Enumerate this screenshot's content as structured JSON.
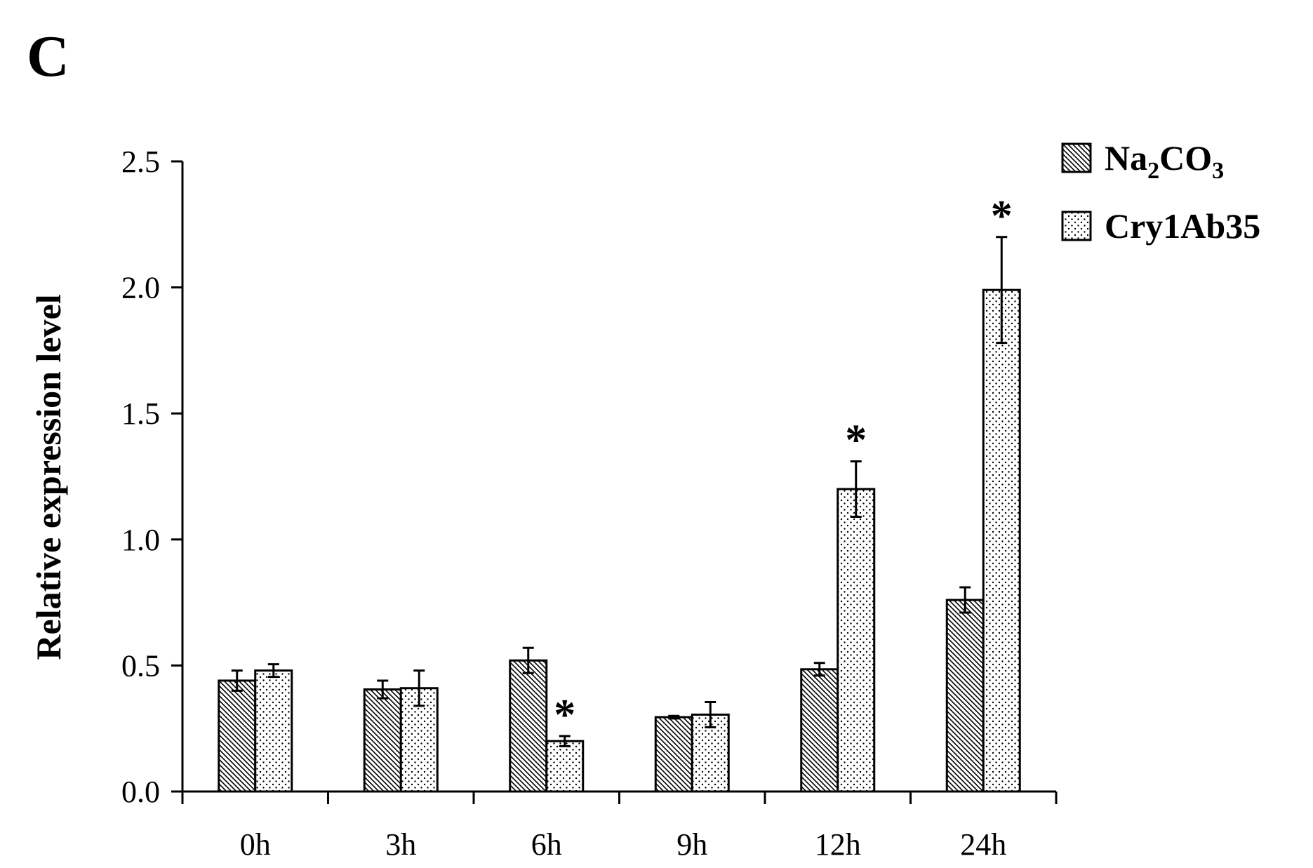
{
  "panel_label": "C",
  "chart_data": {
    "type": "bar",
    "title": "",
    "xlabel": "",
    "ylabel": "Relative expression level",
    "ylim": [
      0,
      2.5
    ],
    "yticks": [
      "0.0",
      "0.5",
      "1.0",
      "1.5",
      "2.0",
      "2.5"
    ],
    "categories": [
      "0h",
      "3h",
      "6h",
      "9h",
      "12h",
      "24h"
    ],
    "grid": false,
    "legend_position": "top-right",
    "significance_marker": "*",
    "series": [
      {
        "name": "Na2CO3",
        "name_parts": {
          "base1": "Na",
          "sub1": "2",
          "base2": "CO",
          "sub2": "3"
        },
        "pattern": "diagonal-hatch",
        "values": [
          0.44,
          0.405,
          0.52,
          0.295,
          0.485,
          0.76
        ],
        "errors": [
          0.04,
          0.035,
          0.05,
          0.005,
          0.025,
          0.05
        ],
        "significant": [
          false,
          false,
          false,
          false,
          false,
          false
        ]
      },
      {
        "name": "Cry1Ab35",
        "pattern": "dots",
        "values": [
          0.48,
          0.41,
          0.2,
          0.305,
          1.2,
          1.99
        ],
        "errors": [
          0.025,
          0.07,
          0.02,
          0.05,
          0.11,
          0.21
        ],
        "significant": [
          false,
          false,
          true,
          false,
          true,
          true
        ]
      }
    ]
  }
}
